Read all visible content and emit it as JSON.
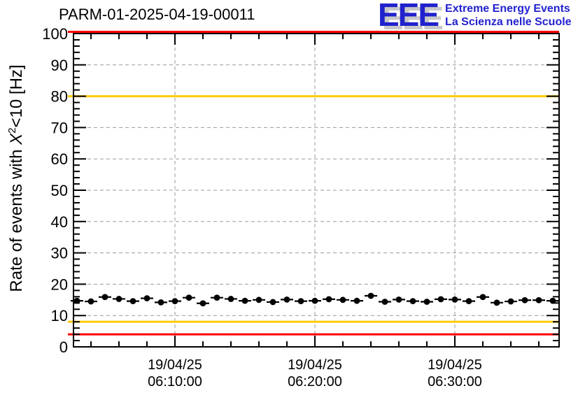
{
  "title": "PARM-01-2025-04-19-00011",
  "logo": {
    "eee": "EEE",
    "line1": "Extreme Energy Events",
    "line2": "La Scienza nelle Scuole"
  },
  "colors": {
    "logo_blue": "#2121cc",
    "logo_shadow_gray": "#c8c8c8",
    "alarm_red": "#ff0000",
    "warning_yellow": "#ffcc00",
    "grid_gray": "#999999",
    "marker_black": "#000000"
  },
  "chart_data": {
    "type": "scatter",
    "title": "PARM-01-2025-04-19-00011",
    "ylabel_parts": {
      "pre": "Rate of events with ",
      "sym": "X",
      "sup": "2",
      "post": "<10 [Hz]"
    },
    "ylabel": "Rate of events with X2<10 [Hz]",
    "xlabel": "",
    "ylim": [
      0,
      100
    ],
    "y_major_step": 10,
    "y_minor_step": 2,
    "xlim_minutes": [
      2.75,
      37.45
    ],
    "x_minor_step_minutes": 2,
    "grid": true,
    "legend": "none",
    "x_ticks": [
      {
        "date": "19/04/25",
        "time": "06:10:00"
      },
      {
        "date": "19/04/25",
        "time": "06:20:00"
      },
      {
        "date": "19/04/25",
        "time": "06:30:00"
      }
    ],
    "reference_lines": [
      {
        "y": 100,
        "color": "#ff0000"
      },
      {
        "y": 80,
        "color": "#ffcc00"
      },
      {
        "y": 8,
        "color": "#ffcc00"
      },
      {
        "y": 4,
        "color": "#ff0000"
      }
    ],
    "series": [
      {
        "name": "rate",
        "marker": "filled-circle",
        "color": "#000000",
        "x_error_minutes": 0.5,
        "y_error_hz": 0.45,
        "times": [
          "06:03:00",
          "06:04:00",
          "06:05:00",
          "06:06:00",
          "06:07:00",
          "06:08:00",
          "06:09:00",
          "06:10:00",
          "06:11:00",
          "06:12:00",
          "06:13:00",
          "06:14:00",
          "06:15:00",
          "06:16:00",
          "06:17:00",
          "06:18:00",
          "06:19:00",
          "06:20:00",
          "06:21:00",
          "06:22:00",
          "06:23:00",
          "06:24:00",
          "06:25:00",
          "06:26:00",
          "06:27:00",
          "06:28:00",
          "06:29:00",
          "06:30:00",
          "06:31:00",
          "06:32:00",
          "06:33:00",
          "06:34:00",
          "06:35:00",
          "06:36:00",
          "06:37:00"
        ],
        "values": [
          14.7,
          14.5,
          15.9,
          15.3,
          14.6,
          15.5,
          14.2,
          14.6,
          15.7,
          13.9,
          15.7,
          15.3,
          14.7,
          15.0,
          14.3,
          15.1,
          14.6,
          14.7,
          15.2,
          15.0,
          14.7,
          16.3,
          14.4,
          15.1,
          14.6,
          14.4,
          15.2,
          15.1,
          14.6,
          15.9,
          14.1,
          14.5,
          14.9,
          14.9,
          14.7
        ]
      }
    ]
  }
}
